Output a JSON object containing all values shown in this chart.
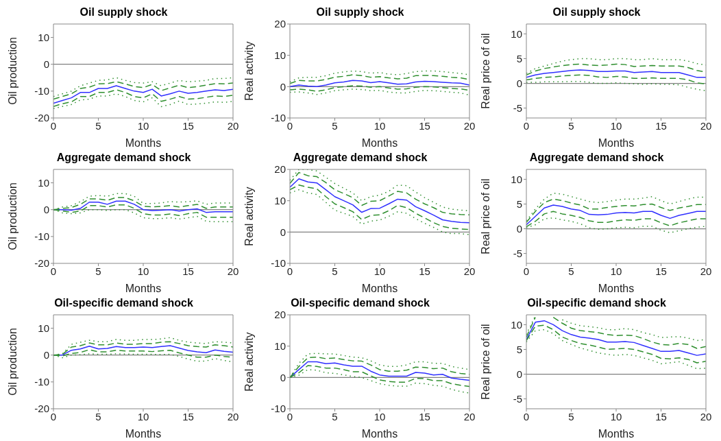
{
  "chart_data": [
    {
      "type": "line",
      "title": "Oil supply shock",
      "xlabel": "Months",
      "ylabel": "Oil production",
      "x": [
        0,
        1,
        2,
        3,
        4,
        5,
        6,
        7,
        8,
        9,
        10,
        11,
        12,
        13,
        14,
        15,
        16,
        17,
        18,
        19,
        20
      ],
      "xlim": [
        0,
        20
      ],
      "xticks": [
        0,
        5,
        10,
        15,
        20
      ],
      "ylim": [
        -20,
        15
      ],
      "yticks": [
        -20,
        -10,
        0,
        10
      ],
      "ref_lines": [
        {
          "axis": "y",
          "value": 0,
          "color": "#808080"
        }
      ],
      "series": [
        {
          "color": "#3030ff",
          "line_style": "solid",
          "values": [
            -14.5,
            -13.5,
            -12.5,
            -10.5,
            -10.5,
            -9,
            -9,
            -8,
            -9,
            -10,
            -10.5,
            -9.3,
            -11.8,
            -11,
            -10,
            -10.8,
            -10.5,
            -10,
            -9.5,
            -9.8,
            -9.3
          ]
        },
        {
          "color": "#2f8f2f",
          "line_style": "dashed",
          "values": [
            -13,
            -12,
            -11,
            -9,
            -8.5,
            -7.3,
            -7.2,
            -6.5,
            -7.3,
            -8.3,
            -8.7,
            -7.5,
            -9.8,
            -8.8,
            -7.8,
            -8.7,
            -8.3,
            -7.8,
            -7.2,
            -7.3,
            -7
          ]
        },
        {
          "color": "#2f8f2f",
          "line_style": "dashed",
          "values": [
            -15.7,
            -14.7,
            -14,
            -12,
            -12,
            -10.5,
            -10.5,
            -9.5,
            -10.5,
            -12,
            -12.5,
            -11,
            -13.8,
            -13,
            -12,
            -13,
            -12.8,
            -12.3,
            -11.8,
            -12,
            -11.5
          ]
        },
        {
          "color": "#2f8f2f",
          "line_style": "dotted",
          "values": [
            -12,
            -11,
            -10,
            -8,
            -7,
            -6,
            -5.8,
            -5,
            -6,
            -6.8,
            -7,
            -6.5,
            -8,
            -7,
            -6,
            -6.5,
            -6.3,
            -6,
            -5.3,
            -5.3,
            -5
          ]
        },
        {
          "color": "#2f8f2f",
          "line_style": "dotted",
          "values": [
            -16.5,
            -15.7,
            -15,
            -13.3,
            -13,
            -11.8,
            -11.8,
            -11,
            -12,
            -13.5,
            -14,
            -12.5,
            -15.8,
            -15,
            -13.7,
            -15,
            -14.8,
            -14.5,
            -14,
            -14.2,
            -13.8
          ]
        }
      ]
    },
    {
      "type": "line",
      "title": "Oil supply shock",
      "xlabel": "Months",
      "ylabel": "Real activity",
      "x": [
        0,
        1,
        2,
        3,
        4,
        5,
        6,
        7,
        8,
        9,
        10,
        11,
        12,
        13,
        14,
        15,
        16,
        17,
        18,
        19,
        20
      ],
      "xlim": [
        0,
        20
      ],
      "xticks": [
        0,
        5,
        10,
        15,
        20
      ],
      "ylim": [
        -10,
        20
      ],
      "yticks": [
        -10,
        0,
        10,
        20
      ],
      "ref_lines": [
        {
          "axis": "y",
          "value": 0,
          "color": "#808080"
        }
      ],
      "series": [
        {
          "color": "#3030ff",
          "line_style": "solid",
          "values": [
            0,
            0.5,
            0.2,
            0,
            0.5,
            1.2,
            1.5,
            2,
            1.8,
            1.3,
            1.6,
            1.2,
            0.8,
            0.9,
            1.5,
            1.7,
            1.6,
            1.4,
            1.2,
            1.1,
            0.5
          ]
        },
        {
          "color": "#2f8f2f",
          "line_style": "dashed",
          "values": [
            1,
            2,
            1.8,
            1.8,
            2.3,
            3,
            3.3,
            3.8,
            3.5,
            3,
            3.2,
            2.8,
            2.5,
            2.7,
            3.5,
            3.6,
            3.5,
            3.3,
            3,
            2.8,
            2.3
          ]
        },
        {
          "color": "#2f8f2f",
          "line_style": "dashed",
          "values": [
            -1,
            -0.8,
            -1,
            -1.5,
            -1,
            -0.3,
            0,
            0.3,
            0.2,
            -0.2,
            0,
            -0.4,
            -0.8,
            -0.7,
            -0.2,
            0,
            -0.1,
            -0.3,
            -0.6,
            -0.7,
            -1.2
          ]
        },
        {
          "color": "#2f8f2f",
          "line_style": "dotted",
          "values": [
            1.5,
            2.8,
            3,
            3,
            3.5,
            4.3,
            4.7,
            5,
            4.8,
            4.3,
            4.5,
            4,
            3.8,
            4.2,
            4.8,
            5,
            5,
            4.8,
            4.5,
            4.2,
            3.8
          ]
        },
        {
          "color": "#2f8f2f",
          "line_style": "dotted",
          "values": [
            -1.8,
            -1.7,
            -2,
            -2.5,
            -2,
            -1.3,
            -1,
            -0.8,
            -0.9,
            -1.3,
            -1.2,
            -1.7,
            -2,
            -2,
            -1.5,
            -1.2,
            -1.3,
            -1.5,
            -1.8,
            -2,
            -2.7
          ]
        }
      ]
    },
    {
      "type": "line",
      "title": "Oil supply shock",
      "xlabel": "Months",
      "ylabel": "Real price of oil",
      "x": [
        0,
        1,
        2,
        3,
        4,
        5,
        6,
        7,
        8,
        9,
        10,
        11,
        12,
        13,
        14,
        15,
        16,
        17,
        18,
        19,
        20
      ],
      "xlim": [
        0,
        20
      ],
      "xticks": [
        0,
        5,
        10,
        15,
        20
      ],
      "ylim": [
        -7,
        12
      ],
      "yticks": [
        -5,
        0,
        5,
        10
      ],
      "ref_lines": [
        {
          "axis": "y",
          "value": 0,
          "color": "#808080"
        }
      ],
      "series": [
        {
          "color": "#3030ff",
          "line_style": "solid",
          "values": [
            1.2,
            1.7,
            2,
            2.2,
            2.4,
            2.6,
            2.7,
            2.6,
            2.4,
            2.4,
            2.5,
            2.5,
            2.2,
            2.3,
            2.4,
            2.2,
            2.2,
            2.2,
            1.7,
            1.2,
            1.2
          ]
        },
        {
          "color": "#2f8f2f",
          "line_style": "dashed",
          "values": [
            1.7,
            2.5,
            3,
            3.3,
            3.6,
            3.8,
            3.9,
            3.7,
            3.6,
            3.7,
            3.9,
            3.8,
            3.4,
            3.5,
            3.6,
            3.5,
            3.5,
            3.5,
            3.2,
            2.6,
            2.3
          ]
        },
        {
          "color": "#2f8f2f",
          "line_style": "dashed",
          "values": [
            0.7,
            1,
            1.2,
            1.3,
            1.5,
            1.6,
            1.7,
            1.6,
            1.3,
            1.2,
            1.4,
            1.3,
            1,
            1,
            1.1,
            1,
            1,
            1,
            0.7,
            0.1,
            -0.1
          ]
        },
        {
          "color": "#2f8f2f",
          "line_style": "dotted",
          "values": [
            2,
            3,
            3.5,
            4,
            4.5,
            4.8,
            5,
            5,
            4.8,
            4.8,
            5,
            5,
            4.8,
            4.8,
            5,
            4.8,
            4.8,
            4.8,
            4.5,
            4,
            3.7
          ]
        },
        {
          "color": "#2f8f2f",
          "line_style": "dotted",
          "values": [
            0.2,
            0.2,
            0.3,
            0.3,
            0.3,
            0.4,
            0.4,
            0.2,
            0,
            0,
            0.1,
            0,
            -0.1,
            -0.2,
            -0.1,
            -0.2,
            -0.2,
            -0.3,
            -0.8,
            -1.2,
            -1.5
          ]
        }
      ]
    },
    {
      "type": "line",
      "title": "Aggregate demand shock",
      "xlabel": "Months",
      "ylabel": "Oil production",
      "x": [
        0,
        1,
        2,
        3,
        4,
        5,
        6,
        7,
        8,
        9,
        10,
        11,
        12,
        13,
        14,
        15,
        16,
        17,
        18,
        19,
        20
      ],
      "xlim": [
        0,
        20
      ],
      "xticks": [
        0,
        5,
        10,
        15,
        20
      ],
      "ylim": [
        -20,
        15
      ],
      "yticks": [
        -20,
        -10,
        0,
        10
      ],
      "ref_lines": [
        {
          "axis": "y",
          "value": 0,
          "color": "#808080"
        }
      ],
      "series": [
        {
          "color": "#3030ff",
          "line_style": "solid",
          "values": [
            0,
            0,
            -0.2,
            0.5,
            2.8,
            2.8,
            2,
            3.2,
            3.2,
            2,
            0,
            -0.3,
            -0.2,
            0,
            -0.5,
            0,
            0.3,
            -1,
            -0.8,
            -0.8,
            -0.8
          ]
        },
        {
          "color": "#2f8f2f",
          "line_style": "dashed",
          "values": [
            0,
            0.5,
            0.8,
            2,
            4,
            4,
            3.5,
            4.5,
            4.5,
            3.3,
            1.3,
            1,
            1.2,
            1.5,
            1,
            1.5,
            2,
            0.5,
            1,
            1,
            1
          ]
        },
        {
          "color": "#2f8f2f",
          "line_style": "dashed",
          "values": [
            0,
            -0.5,
            -1,
            -0.5,
            1.5,
            1.5,
            1,
            1.8,
            1.8,
            0.5,
            -1.5,
            -2,
            -2,
            -1.6,
            -2.2,
            -1.5,
            -1,
            -2.8,
            -2.8,
            -2.8,
            -2.8
          ]
        },
        {
          "color": "#2f8f2f",
          "line_style": "dotted",
          "values": [
            0,
            1,
            1.5,
            3,
            5,
            5.3,
            5,
            6,
            6,
            5,
            2.3,
            2.3,
            2.5,
            3,
            2.8,
            3,
            3.3,
            2,
            2.5,
            2.5,
            2.5
          ]
        },
        {
          "color": "#2f8f2f",
          "line_style": "dotted",
          "values": [
            0,
            -1.2,
            -1.5,
            -1.2,
            0,
            0,
            -0.3,
            0,
            0,
            -1.2,
            -3,
            -3.3,
            -3.3,
            -3,
            -3.5,
            -3,
            -2.5,
            -4.3,
            -4.5,
            -4.5,
            -4.5
          ]
        }
      ]
    },
    {
      "type": "line",
      "title": "Aggregate demand shock",
      "xlabel": "Months",
      "ylabel": "Real activity",
      "x": [
        0,
        1,
        2,
        3,
        4,
        5,
        6,
        7,
        8,
        9,
        10,
        11,
        12,
        13,
        14,
        15,
        16,
        17,
        18,
        19,
        20
      ],
      "xlim": [
        0,
        20
      ],
      "xticks": [
        0,
        5,
        10,
        15,
        20
      ],
      "ylim": [
        -10,
        20
      ],
      "yticks": [
        -10,
        0,
        10,
        20
      ],
      "ref_lines": [
        {
          "axis": "y",
          "value": 0,
          "color": "#808080"
        }
      ],
      "series": [
        {
          "color": "#3030ff",
          "line_style": "solid",
          "values": [
            14.3,
            17,
            16,
            15.7,
            13.5,
            11.3,
            10,
            8.7,
            6.3,
            7.5,
            7.6,
            9,
            10.5,
            10.2,
            8.1,
            6.8,
            5.4,
            3.9,
            3.4,
            3.1,
            3
          ]
        },
        {
          "color": "#2f8f2f",
          "line_style": "dashed",
          "values": [
            15.5,
            19,
            18,
            17.7,
            15.8,
            13.5,
            12.3,
            11,
            8.5,
            9.8,
            10,
            11.5,
            13,
            12.5,
            10.5,
            9,
            7.8,
            6.3,
            5.8,
            5.6,
            5.5
          ]
        },
        {
          "color": "#2f8f2f",
          "line_style": "dashed",
          "values": [
            13.5,
            15,
            14.3,
            13.8,
            11.3,
            9,
            7.8,
            6.5,
            4,
            5.3,
            5.5,
            6.8,
            8.5,
            7.8,
            6,
            4.5,
            3,
            1.8,
            1.2,
            1,
            0.8
          ]
        },
        {
          "color": "#2f8f2f",
          "line_style": "dotted",
          "values": [
            16.5,
            20,
            20,
            19.5,
            17.5,
            15.5,
            14,
            12.5,
            10,
            11.3,
            11.8,
            13,
            15,
            14.8,
            12.8,
            11,
            9.5,
            8,
            7.3,
            7,
            6.8
          ]
        },
        {
          "color": "#2f8f2f",
          "line_style": "dotted",
          "values": [
            12.5,
            13.5,
            12.5,
            12,
            9.5,
            7,
            6,
            5,
            2.5,
            3.5,
            3.8,
            5,
            6.5,
            6,
            4.3,
            2.8,
            1.5,
            0,
            -0.5,
            -0.5,
            -0.8
          ]
        }
      ]
    },
    {
      "type": "line",
      "title": "Aggregate demand shock",
      "xlabel": "Months",
      "ylabel": "Real price of oil",
      "x": [
        0,
        1,
        2,
        3,
        4,
        5,
        6,
        7,
        8,
        9,
        10,
        11,
        12,
        13,
        14,
        15,
        16,
        17,
        18,
        19,
        20
      ],
      "xlim": [
        0,
        20
      ],
      "xticks": [
        0,
        5,
        10,
        15,
        20
      ],
      "ylim": [
        -7,
        12
      ],
      "yticks": [
        -5,
        0,
        5,
        10
      ],
      "ref_lines": [
        {
          "axis": "y",
          "value": 0,
          "color": "#808080"
        }
      ],
      "series": [
        {
          "color": "#3030ff",
          "line_style": "solid",
          "values": [
            0.8,
            2.5,
            4.2,
            4.8,
            4.5,
            4,
            3.7,
            2.9,
            2.8,
            2.9,
            3.2,
            3.3,
            3.2,
            3.5,
            3.5,
            2.7,
            2.1,
            2.7,
            3.1,
            3.5,
            3.5
          ]
        },
        {
          "color": "#2f8f2f",
          "line_style": "dashed",
          "values": [
            1.3,
            3.5,
            5.3,
            6,
            5.7,
            5.2,
            4.8,
            4,
            4,
            4.3,
            4.5,
            4.7,
            4.6,
            4.9,
            5,
            4.3,
            3.7,
            4.2,
            4.5,
            4.9,
            4.9
          ]
        },
        {
          "color": "#2f8f2f",
          "line_style": "dashed",
          "values": [
            0.4,
            1.5,
            3,
            3.5,
            3,
            2.7,
            2.3,
            1.6,
            1.3,
            1.3,
            1.6,
            1.8,
            1.7,
            2,
            2,
            1.2,
            0.6,
            1.2,
            1.6,
            2,
            2
          ]
        },
        {
          "color": "#2f8f2f",
          "line_style": "dotted",
          "values": [
            1.6,
            4,
            6,
            7.2,
            7,
            6.5,
            6,
            5.5,
            5.3,
            5.5,
            5.8,
            6,
            6,
            6.2,
            6.5,
            5.7,
            5,
            5.5,
            6,
            6.4,
            6.4
          ]
        },
        {
          "color": "#2f8f2f",
          "line_style": "dotted",
          "values": [
            0.2,
            0.8,
            2,
            2.2,
            1.8,
            1.5,
            1,
            0.2,
            -0.1,
            0,
            0.2,
            0.3,
            0.2,
            0.5,
            0.5,
            -0.3,
            -0.8,
            -0.4,
            0,
            0.3,
            0.5
          ]
        }
      ]
    },
    {
      "type": "line",
      "title": "Oil-specific demand shock",
      "xlabel": "Months",
      "ylabel": "Oil production",
      "x": [
        0,
        1,
        2,
        3,
        4,
        5,
        6,
        7,
        8,
        9,
        10,
        11,
        12,
        13,
        14,
        15,
        16,
        17,
        18,
        19,
        20
      ],
      "xlim": [
        0,
        20
      ],
      "xticks": [
        0,
        5,
        10,
        15,
        20
      ],
      "ylim": [
        -20,
        15
      ],
      "yticks": [
        -20,
        -10,
        0,
        10
      ],
      "ref_lines": [
        {
          "axis": "y",
          "value": 0,
          "color": "#808080"
        }
      ],
      "series": [
        {
          "color": "#3030ff",
          "line_style": "solid",
          "values": [
            0,
            0,
            1.8,
            2.3,
            3.3,
            2.3,
            2.5,
            3.2,
            2.8,
            2.8,
            3,
            2.8,
            3.2,
            3.5,
            2.6,
            1.7,
            1.2,
            0.9,
            1.9,
            1.4,
            1.1
          ]
        },
        {
          "color": "#2f8f2f",
          "line_style": "dashed",
          "values": [
            0,
            0.3,
            3,
            3.5,
            4.5,
            3.8,
            3.8,
            4.5,
            4,
            4,
            4.3,
            4.3,
            4.8,
            5,
            4.3,
            3.5,
            3.2,
            3,
            3.8,
            3.5,
            3
          ]
        },
        {
          "color": "#2f8f2f",
          "line_style": "dashed",
          "values": [
            0,
            -0.3,
            0.6,
            1,
            2,
            1.2,
            1.2,
            1.8,
            1.5,
            1.5,
            1.5,
            1.3,
            1.6,
            1.8,
            0.8,
            0,
            -0.8,
            -0.8,
            0,
            -0.5,
            -0.8
          ]
        },
        {
          "color": "#2f8f2f",
          "line_style": "dotted",
          "values": [
            0,
            0.5,
            4,
            4.8,
            5.5,
            5,
            5,
            5.8,
            5.5,
            5.5,
            5.8,
            5.8,
            6,
            6.5,
            5.5,
            4.8,
            4.5,
            4.3,
            5,
            4.8,
            4.5
          ]
        },
        {
          "color": "#2f8f2f",
          "line_style": "dotted",
          "values": [
            0,
            -1,
            0,
            0.1,
            0.5,
            0.3,
            0.3,
            0.5,
            0.4,
            0.3,
            0.3,
            0.3,
            0.2,
            0.3,
            -0.5,
            -1.5,
            -2.3,
            -2.2,
            -1.3,
            -2,
            -2.5
          ]
        }
      ]
    },
    {
      "type": "line",
      "title": "Oil-specific demand shock",
      "xlabel": "Months",
      "ylabel": "Real activity",
      "x": [
        0,
        1,
        2,
        3,
        4,
        5,
        6,
        7,
        8,
        9,
        10,
        11,
        12,
        13,
        14,
        15,
        16,
        17,
        18,
        19,
        20
      ],
      "xlim": [
        0,
        20
      ],
      "xticks": [
        0,
        5,
        10,
        15,
        20
      ],
      "ylim": [
        -10,
        20
      ],
      "yticks": [
        -10,
        0,
        10,
        20
      ],
      "ref_lines": [
        {
          "axis": "y",
          "value": 0,
          "color": "#808080"
        }
      ],
      "series": [
        {
          "color": "#3030ff",
          "line_style": "solid",
          "values": [
            0,
            2.5,
            5,
            5,
            4.4,
            4.6,
            4,
            3.6,
            3.6,
            2,
            0.8,
            0.4,
            0.4,
            0.4,
            1.6,
            1.4,
            0.8,
            1,
            -0.2,
            -0.6,
            -0.9
          ]
        },
        {
          "color": "#2f8f2f",
          "line_style": "dashed",
          "values": [
            0,
            3.5,
            6.3,
            6.5,
            6,
            6.2,
            5.7,
            5.3,
            5.2,
            4,
            2.5,
            2,
            2,
            2.3,
            3.3,
            3.2,
            2.8,
            3,
            1.8,
            1.3,
            1
          ]
        },
        {
          "color": "#2f8f2f",
          "line_style": "dashed",
          "values": [
            0,
            1.5,
            3.8,
            3.5,
            3,
            3,
            2.5,
            1.8,
            1.8,
            0.5,
            -0.8,
            -1.3,
            -1.5,
            -1.5,
            -0.3,
            -0.4,
            -1,
            -1,
            -2,
            -2.5,
            -2.9
          ]
        },
        {
          "color": "#2f8f2f",
          "line_style": "dotted",
          "values": [
            0,
            4.5,
            7.5,
            7.7,
            7.5,
            7.5,
            7,
            6.5,
            6.3,
            5.3,
            4,
            3.5,
            3.5,
            4,
            5,
            5,
            4.5,
            4.5,
            3.5,
            3,
            2.5
          ]
        },
        {
          "color": "#2f8f2f",
          "line_style": "dotted",
          "values": [
            0,
            0.7,
            2.5,
            2.3,
            1.5,
            1.3,
            0.8,
            0.3,
            0,
            -1,
            -2,
            -2.5,
            -2.8,
            -2.8,
            -1.8,
            -2,
            -2.5,
            -2.8,
            -3.8,
            -4.5,
            -5
          ]
        }
      ]
    },
    {
      "type": "line",
      "title": "Oil-specific demand shock",
      "xlabel": "Months",
      "ylabel": "Real price of oil",
      "x": [
        0,
        1,
        2,
        3,
        4,
        5,
        6,
        7,
        8,
        9,
        10,
        11,
        12,
        13,
        14,
        15,
        16,
        17,
        18,
        19,
        20
      ],
      "xlim": [
        0,
        20
      ],
      "xticks": [
        0,
        5,
        10,
        15,
        20
      ],
      "ylim": [
        -7,
        12
      ],
      "yticks": [
        -5,
        0,
        5,
        10
      ],
      "ref_lines": [
        {
          "axis": "y",
          "value": 0,
          "color": "#808080"
        }
      ],
      "series": [
        {
          "color": "#3030ff",
          "line_style": "solid",
          "values": [
            7,
            10.5,
            10.8,
            10,
            8.8,
            8,
            7.5,
            7.3,
            7,
            6.5,
            6.5,
            6.6,
            6.4,
            5.8,
            5.2,
            4.6,
            4.6,
            4.8,
            4.3,
            3.8,
            4.1
          ]
        },
        {
          "color": "#2f8f2f",
          "line_style": "dashed",
          "values": [
            7.5,
            11.5,
            null,
            11.5,
            10.3,
            9.3,
            8.8,
            8.6,
            8.4,
            8,
            7.8,
            7.9,
            7.8,
            7.2,
            6.5,
            6,
            5.9,
            6.2,
            6,
            5.2,
            5.6
          ]
        },
        {
          "color": "#2f8f2f",
          "line_style": "dashed",
          "values": [
            6.8,
            9.7,
            9.9,
            9,
            7.5,
            6.8,
            6.2,
            5.9,
            5.5,
            5,
            5.1,
            5.2,
            5,
            4.5,
            4,
            3.2,
            3.1,
            3.3,
            3,
            2.3,
            2.6
          ]
        },
        {
          "color": "#2f8f2f",
          "line_style": "dotted",
          "values": [
            8,
            11.8,
            null,
            null,
            11,
            10.3,
            9.8,
            9.6,
            9.4,
            9,
            9,
            9.2,
            9,
            8.4,
            8,
            7.4,
            7.5,
            7.6,
            7.3,
            6.8,
            7
          ]
        },
        {
          "color": "#2f8f2f",
          "line_style": "dotted",
          "values": [
            6.5,
            8.8,
            9,
            8.2,
            6.8,
            6,
            5.3,
            4.8,
            4.3,
            4,
            3.8,
            4,
            3.8,
            3.3,
            2.8,
            2.1,
            2.3,
            2.5,
            1.8,
            1.1,
            1.2
          ]
        }
      ]
    }
  ]
}
